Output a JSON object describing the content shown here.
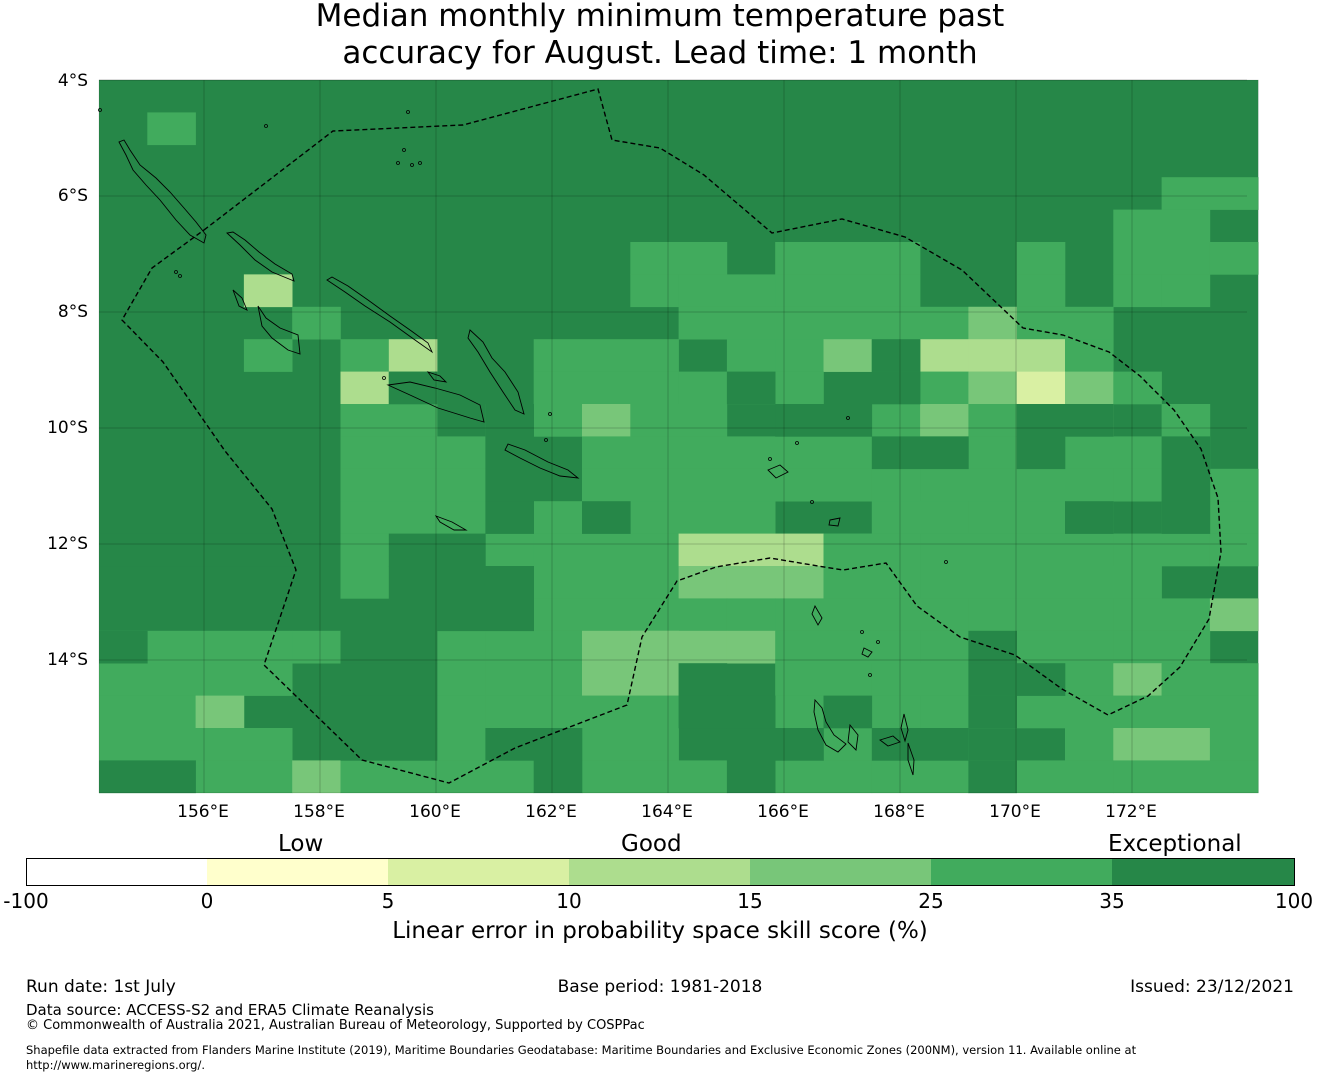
{
  "title_line1": "Median monthly minimum temperature past",
  "title_line2": "accuracy for August. Lead time: 1 month",
  "map": {
    "lat_labels": [
      "4°S",
      "6°S",
      "8°S",
      "10°S",
      "12°S",
      "14°S"
    ],
    "lon_labels": [
      "156°E",
      "158°E",
      "160°E",
      "162°E",
      "164°E",
      "166°E",
      "168°E",
      "170°E",
      "172°E"
    ],
    "colors": {
      "v100": "#268748",
      "v35": "#41ab5d",
      "v25": "#78c679",
      "v15": "#addd8e",
      "v10": "#d9f0a3",
      "v5": "#ffffcc",
      "v0": "#ffffff",
      "coast": "#000000",
      "eez": "#000000"
    }
  },
  "legend": {
    "categories": [
      "Low",
      "Good",
      "Exceptional"
    ],
    "ticks": [
      "-100",
      "0",
      "5",
      "10",
      "15",
      "25",
      "35",
      "100"
    ],
    "bins": [
      {
        "from": -100,
        "to": 0,
        "color": "#ffffff"
      },
      {
        "from": 0,
        "to": 5,
        "color": "#ffffcc"
      },
      {
        "from": 5,
        "to": 10,
        "color": "#d9f0a3"
      },
      {
        "from": 10,
        "to": 15,
        "color": "#addd8e"
      },
      {
        "from": 15,
        "to": 25,
        "color": "#78c679"
      },
      {
        "from": 25,
        "to": 35,
        "color": "#41ab5d"
      },
      {
        "from": 35,
        "to": 100,
        "color": "#268748"
      }
    ],
    "label": "Linear error in probability space skill score (%)"
  },
  "footer": {
    "run_date": "Run date: 1st July",
    "base_period": "Base period: 1981-2018",
    "issued": "Issued: 23/12/2021",
    "data_source": "Data source: ACCESS-S2 and ERA5 Climate Reanalysis",
    "copyright": "© Commonwealth of Australia 2021, Australian Bureau of Meteorology, Supported by COSPPac",
    "shapefile_line1": "Shapefile data extracted from Flanders Marine Institute (2019), Maritime Boundaries Geodatabase: Maritime Boundaries and Exclusive Economic Zones (200NM), version 11. Available online at",
    "shapefile_line2": "http://www.marineregions.org/."
  }
}
